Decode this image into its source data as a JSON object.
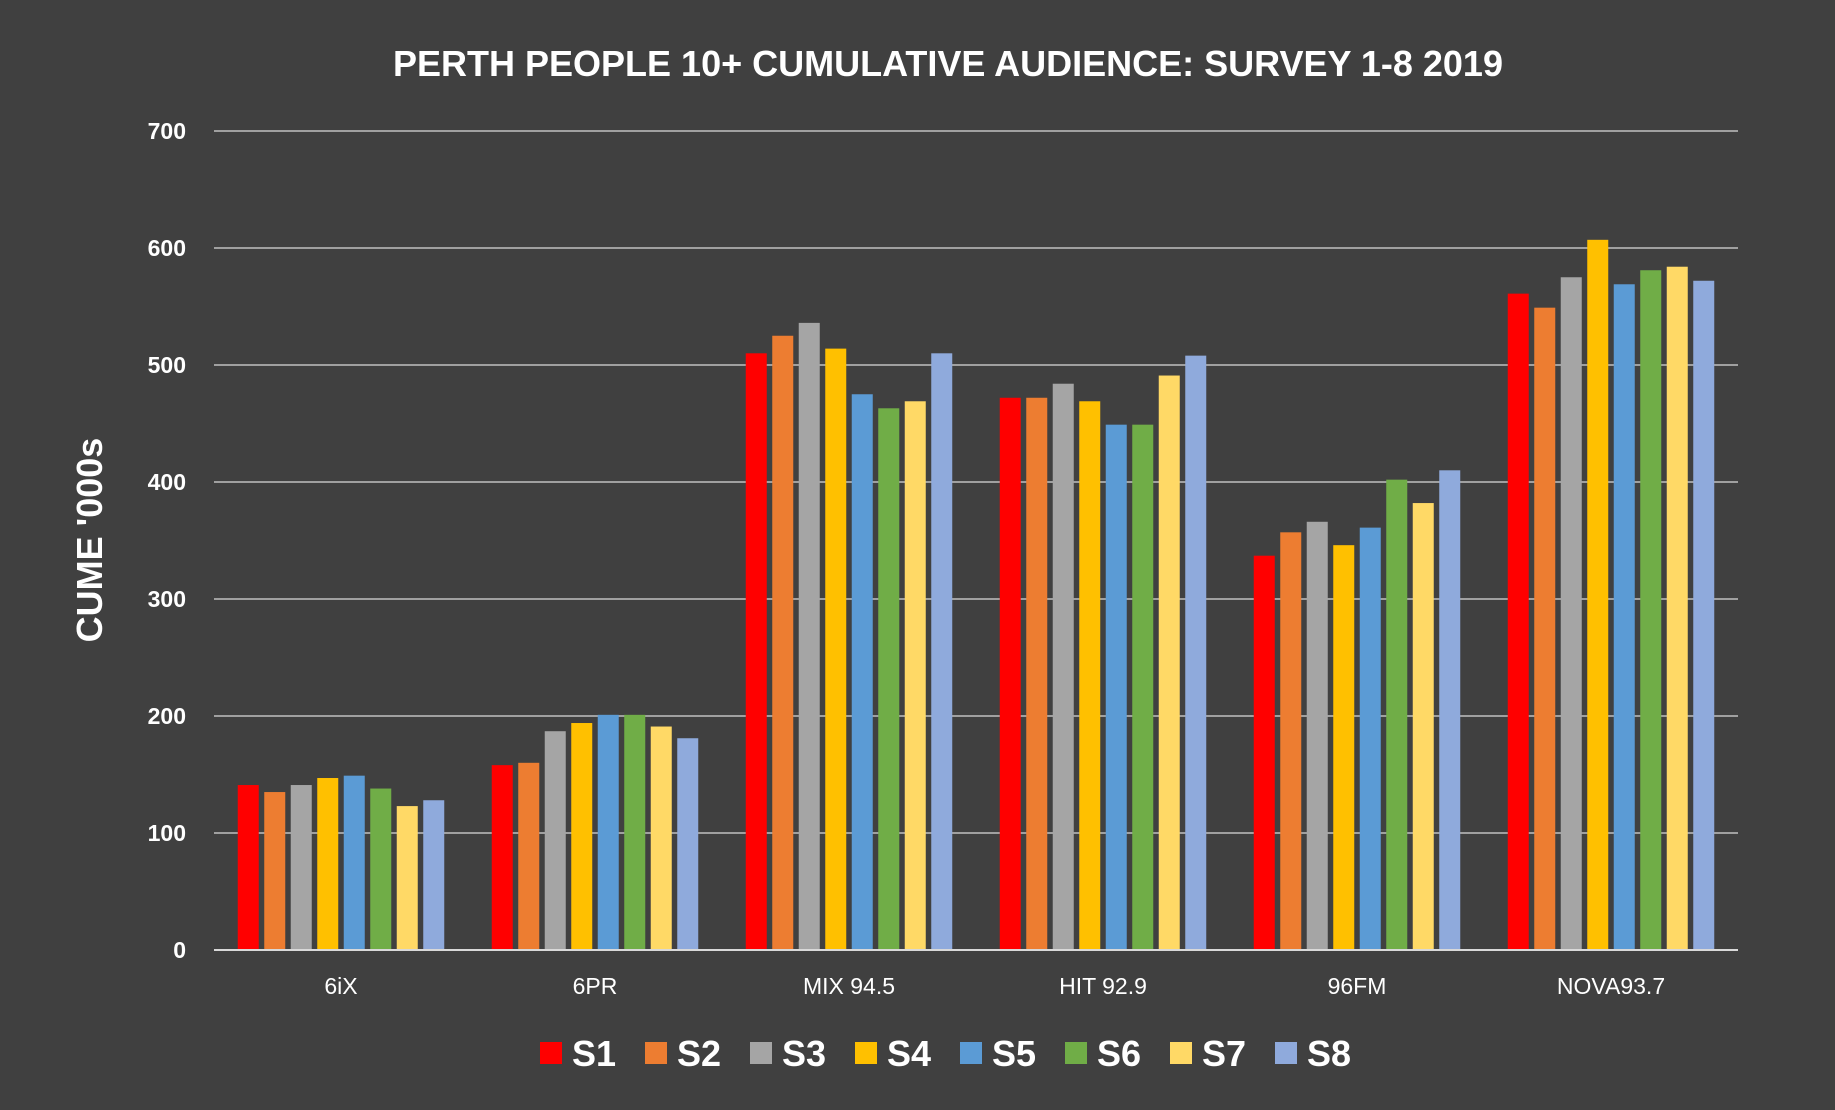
{
  "chart_data": {
    "type": "bar",
    "title": "PERTH PEOPLE 10+ CUMULATIVE AUDIENCE: SURVEY 1-8 2019",
    "xlabel": "",
    "ylabel": "CUME '000s",
    "ylim": [
      0,
      700
    ],
    "yticks": [
      0,
      100,
      200,
      300,
      400,
      500,
      600,
      700
    ],
    "grid": true,
    "legend_position": "bottom",
    "categories": [
      "6iX",
      "6PR",
      "MIX 94.5",
      "HIT 92.9",
      "96FM",
      "NOVA93.7"
    ],
    "series": [
      {
        "name": "S1",
        "color": "#ff0000",
        "values": [
          141,
          158,
          510,
          472,
          337,
          561
        ]
      },
      {
        "name": "S2",
        "color": "#ed7d31",
        "values": [
          135,
          160,
          525,
          472,
          357,
          549
        ]
      },
      {
        "name": "S3",
        "color": "#a5a5a5",
        "values": [
          141,
          187,
          536,
          484,
          366,
          575
        ]
      },
      {
        "name": "S4",
        "color": "#ffc000",
        "values": [
          147,
          194,
          514,
          469,
          346,
          607
        ]
      },
      {
        "name": "S5",
        "color": "#5b9bd5",
        "values": [
          149,
          201,
          475,
          449,
          361,
          569
        ]
      },
      {
        "name": "S6",
        "color": "#70ad47",
        "values": [
          138,
          201,
          463,
          449,
          402,
          581
        ]
      },
      {
        "name": "S7",
        "color": "#ffd966",
        "values": [
          123,
          191,
          469,
          491,
          382,
          584
        ]
      },
      {
        "name": "S8",
        "color": "#8faadc",
        "values": [
          128,
          181,
          510,
          508,
          410,
          572
        ]
      }
    ]
  }
}
